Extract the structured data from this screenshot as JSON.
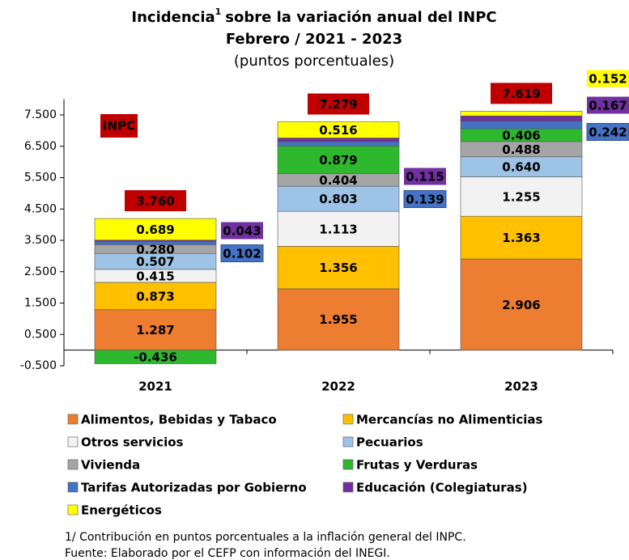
{
  "chart_data": {
    "type": "stacked_bar",
    "title": "Incidencia",
    "title_superscript": "1",
    "title_rest": "sobre la variación anual del INPC",
    "subtitle": "Febrero / 2021 - 2023",
    "unit_label": "(puntos porcentuales)",
    "categories": [
      "2021",
      "2022",
      "2023"
    ],
    "series": [
      {
        "name": "Alimentos, Bebidas y Tabaco",
        "color": "#ED7D31",
        "values": [
          1.287,
          1.955,
          2.906
        ],
        "value_labels": [
          "1.287",
          "1.955",
          "2.906"
        ]
      },
      {
        "name": "Mercancías no Alimenticias",
        "color": "#FFC000",
        "values": [
          0.873,
          1.356,
          1.363
        ],
        "value_labels": [
          "0.873",
          "1.356",
          "1.363"
        ]
      },
      {
        "name": "Otros servicios",
        "color": "#F2F2F2",
        "values": [
          0.415,
          1.113,
          1.255
        ],
        "value_labels": [
          "0.415",
          "1.113",
          "1.255"
        ]
      },
      {
        "name": "Pecuarios",
        "color": "#9DC3E6",
        "values": [
          0.507,
          0.803,
          0.64
        ],
        "value_labels": [
          "0.507",
          "0.803",
          "0.640"
        ]
      },
      {
        "name": "Vivienda",
        "color": "#A5A5A5",
        "values": [
          0.28,
          0.404,
          0.488
        ],
        "value_labels": [
          "0.280",
          "0.404",
          "0.488"
        ]
      },
      {
        "name": "Frutas y Verduras",
        "color": "#2EB82E",
        "values": [
          -0.436,
          0.879,
          0.406
        ],
        "value_labels": [
          "-0.436",
          "0.879",
          "0.406"
        ]
      },
      {
        "name": "Tarifas Autorizadas por Gobierno",
        "color": "#4472C4",
        "values": [
          0.102,
          0.139,
          0.242
        ],
        "value_labels": [
          "0.102",
          "0.139",
          "0.242"
        ]
      },
      {
        "name": "Educación (Colegiaturas)",
        "color": "#7030A0",
        "values": [
          0.043,
          0.115,
          0.167
        ],
        "value_labels": [
          "0.043",
          "0.115",
          "0.167"
        ]
      },
      {
        "name": "Energéticos",
        "color": "#FFFF00",
        "values": [
          0.689,
          0.516,
          0.152
        ],
        "value_labels": [
          "0.689",
          "0.516",
          "0.152"
        ]
      }
    ],
    "totals": {
      "name": "INPC",
      "color": "#C00000",
      "values": [
        3.76,
        7.279,
        7.619
      ],
      "value_labels": [
        "3.760",
        "7.279",
        "7.619"
      ]
    },
    "ylim": [
      -0.5,
      8.0
    ],
    "yticks": [
      {
        "value": -0.5,
        "label": "-0.500"
      },
      {
        "value": 0.5,
        "label": "0.500"
      },
      {
        "value": 1.5,
        "label": "1.500"
      },
      {
        "value": 2.5,
        "label": "2.500"
      },
      {
        "value": 3.5,
        "label": "3.500"
      },
      {
        "value": 4.5,
        "label": "4.500"
      },
      {
        "value": 5.5,
        "label": "5.500"
      },
      {
        "value": 6.5,
        "label": "6.500"
      },
      {
        "value": 7.5,
        "label": "7.500"
      }
    ],
    "grid": false,
    "notes": [
      "1/ Contribución en puntos porcentuales a la inflación general del INPC.",
      "Fuente: Elaborado por el CEFP con información del INEGI."
    ]
  }
}
